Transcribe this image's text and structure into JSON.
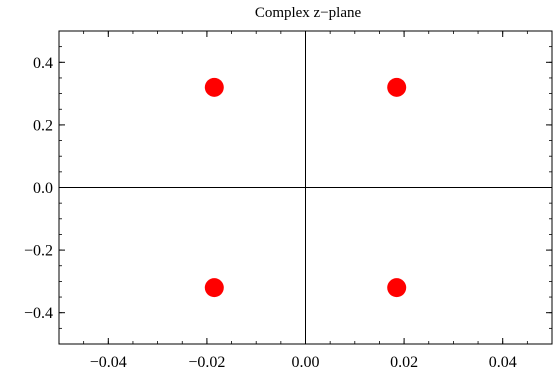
{
  "chart_data": {
    "type": "scatter",
    "title": "Complex z−plane",
    "xlabel": "",
    "ylabel": "",
    "xlim": [
      -0.05,
      0.05
    ],
    "ylim": [
      -0.5,
      0.5
    ],
    "x_ticks": [
      {
        "value": -0.04,
        "label": "−0.04"
      },
      {
        "value": -0.02,
        "label": "−0.02"
      },
      {
        "value": 0.0,
        "label": "0.00"
      },
      {
        "value": 0.02,
        "label": "0.02"
      },
      {
        "value": 0.04,
        "label": "0.04"
      }
    ],
    "y_ticks": [
      {
        "value": 0.4,
        "label": "0.4"
      },
      {
        "value": 0.2,
        "label": "0.2"
      },
      {
        "value": 0.0,
        "label": "0.0"
      },
      {
        "value": -0.2,
        "label": "−0.2"
      },
      {
        "value": -0.4,
        "label": "−0.4"
      }
    ],
    "points": [
      {
        "x": -0.0185,
        "y": 0.32
      },
      {
        "x": 0.0185,
        "y": 0.32
      },
      {
        "x": -0.0185,
        "y": -0.32
      },
      {
        "x": 0.0185,
        "y": -0.32
      }
    ],
    "marker_color": "#ff0000",
    "axes_color": "#000000",
    "grid": false,
    "legend": "none"
  }
}
